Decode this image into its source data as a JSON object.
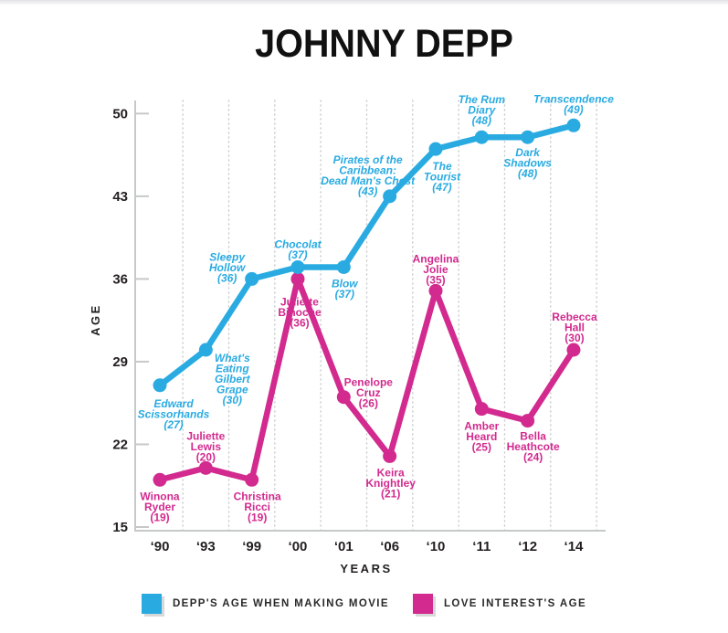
{
  "page": {
    "title": "JOHNNY DEPP"
  },
  "chart_data": {
    "type": "line",
    "title": "JOHNNY DEPP",
    "xlabel": "YEARS",
    "ylabel": "AGE",
    "x_labels": [
      "‘90",
      "‘93",
      "‘99",
      "‘00",
      "‘01",
      "‘06",
      "‘10",
      "‘11",
      "‘12",
      "‘14"
    ],
    "yticks": [
      15,
      22,
      29,
      36,
      43,
      50
    ],
    "ylim": [
      15,
      50
    ],
    "grid": "vertical dotted lines between categories",
    "legend_position": "bottom",
    "series": [
      {
        "name": "DEPP'S AGE WHEN MAKING MOVIE",
        "color": "#29ABE2",
        "label_style": "italic",
        "values": [
          27,
          30,
          36,
          37,
          37,
          43,
          47,
          48,
          48,
          49
        ],
        "points": [
          {
            "label": "Edward Scissorhands",
            "value": 27,
            "lines": [
              "Edward",
              "Scissorhands",
              "(27)"
            ],
            "dx": 15,
            "dy": 14
          },
          {
            "label": "What's Eating Gilbert Grape",
            "value": 30,
            "lines": [
              "What's",
              "Eating",
              "Gilbert",
              "Grape",
              "(30)"
            ],
            "dx": 29,
            "dy": 3
          },
          {
            "label": "Sleepy Hollow",
            "value": 36,
            "lines": [
              "Sleepy",
              "Hollow",
              "(36)"
            ],
            "dx": -27,
            "dy": -30
          },
          {
            "label": "Chocolat",
            "value": 37,
            "lines": [
              "Chocolat",
              "(37)"
            ],
            "dx": 0,
            "dy": -31
          },
          {
            "label": "Blow",
            "value": 37,
            "lines": [
              "Blow",
              "(37)"
            ],
            "dx": 1,
            "dy": 12
          },
          {
            "label": "Pirates of the Caribbean: Dead Man's Chest",
            "value": 43,
            "lines": [
              "Pirates of the",
              "Caribbean:",
              "Dead Man's Chest",
              "(43)"
            ],
            "dx": -24,
            "dy": -46
          },
          {
            "label": "The Tourist",
            "value": 47,
            "lines": [
              "The",
              "Tourist",
              "(47)"
            ],
            "dx": 7,
            "dy": 13
          },
          {
            "label": "The Rum Diary",
            "value": 48,
            "lines": [
              "The Rum",
              "Diary",
              "(48)"
            ],
            "dx": 0,
            "dy": -47
          },
          {
            "label": "Dark Shadows",
            "value": 48,
            "lines": [
              "Dark",
              "Shadows",
              "(48)"
            ],
            "dx": 0,
            "dy": 11
          },
          {
            "label": "Transcendence",
            "value": 49,
            "lines": [
              "Transcendence",
              "(49)"
            ],
            "dx": 0,
            "dy": -35
          }
        ]
      },
      {
        "name": "LOVE INTEREST'S AGE",
        "color": "#D22A8E",
        "label_style": "normal",
        "values": [
          19,
          20,
          19,
          36,
          26,
          21,
          35,
          25,
          24,
          30
        ],
        "points": [
          {
            "label": "Winona Ryder",
            "value": 19,
            "lines": [
              "Winona",
              "Ryder",
              "(19)"
            ],
            "dx": 0,
            "dy": 12
          },
          {
            "label": "Juliette Lewis",
            "value": 20,
            "lines": [
              "Juliette",
              "Lewis",
              "(20)"
            ],
            "dx": 0,
            "dy": -41
          },
          {
            "label": "Christina Ricci",
            "value": 19,
            "lines": [
              "Christina",
              "Ricci",
              "(19)"
            ],
            "dx": 6,
            "dy": 12
          },
          {
            "label": "Juliette Binoche",
            "value": 36,
            "lines": [
              "Juliette",
              "Binoche",
              "(36)"
            ],
            "dx": 2,
            "dy": 19
          },
          {
            "label": "Penelope Cruz",
            "value": 26,
            "lines": [
              "Penelope",
              "Cruz",
              "(26)"
            ],
            "dx": 27,
            "dy": -22
          },
          {
            "label": "Keira Knightley",
            "value": 21,
            "lines": [
              "Keira",
              "Knightley",
              "(21)"
            ],
            "dx": 1,
            "dy": 12
          },
          {
            "label": "Angelina Jolie",
            "value": 35,
            "lines": [
              "Angelina",
              "Jolie",
              "(35)"
            ],
            "dx": 0,
            "dy": -41
          },
          {
            "label": "Amber Heard",
            "value": 25,
            "lines": [
              "Amber",
              "Heard",
              "(25)"
            ],
            "dx": 0,
            "dy": 13
          },
          {
            "label": "Bella Heathcote",
            "value": 24,
            "lines": [
              "Bella",
              "Heathcote",
              "(24)"
            ],
            "dx": 6,
            "dy": 11
          },
          {
            "label": "Rebecca Hall",
            "value": 30,
            "lines": [
              "Rebecca",
              "Hall",
              "(30)"
            ],
            "dx": 1,
            "dy": -42
          }
        ]
      }
    ]
  }
}
